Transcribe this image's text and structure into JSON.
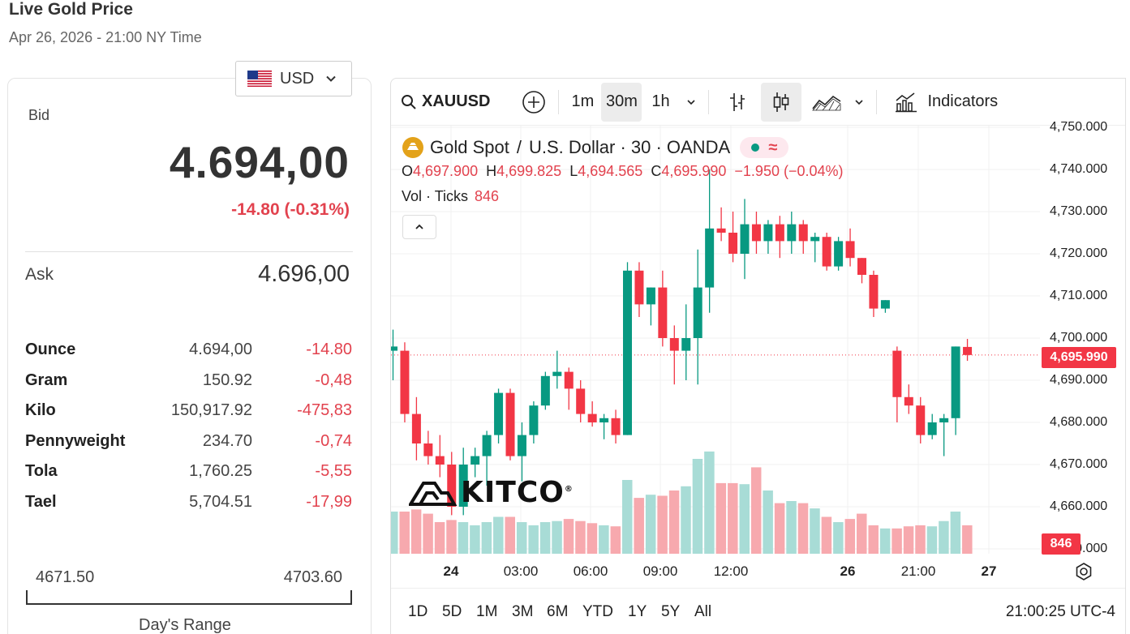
{
  "header": {
    "title": "Live Gold Price",
    "subtitle": "Apr 26, 2026 - 21:00 NY Time"
  },
  "currency": {
    "selected": "USD",
    "flag_icon": "us-flag-icon"
  },
  "quote": {
    "bid_label": "Bid",
    "bid_value": "4.694,00",
    "bid_change": "-14.80 (-0.31%)",
    "ask_label": "Ask",
    "ask_value": "4.696,00"
  },
  "units": [
    {
      "name": "Ounce",
      "price": "4.694,00",
      "change": "-14.80"
    },
    {
      "name": "Gram",
      "price": "150.92",
      "change": "-0,48"
    },
    {
      "name": "Kilo",
      "price": "150,917.92",
      "change": "-475,83"
    },
    {
      "name": "Pennyweight",
      "price": "234.70",
      "change": "-0,74"
    },
    {
      "name": "Tola",
      "price": "1,760.25",
      "change": "-5,55"
    },
    {
      "name": "Tael",
      "price": "5,704.51",
      "change": "-17,99"
    }
  ],
  "day_range": {
    "low": "4671.50",
    "high": "4703.60",
    "label": "Day's Range"
  },
  "chart_toolbar": {
    "symbol": "XAUUSD",
    "intervals": [
      "1m",
      "30m",
      "1h"
    ],
    "active_interval": "30m",
    "indicators_label": "Indicators"
  },
  "chart_legend": {
    "title": "Gold Spot",
    "title_sep": "/",
    "title_rest": "U.S. Dollar · 30 · OANDA",
    "o_label": "O",
    "o": "4,697.900",
    "h_label": "H",
    "h": "4,699.825",
    "l_label": "L",
    "l": "4,694.565",
    "c_label": "C",
    "c": "4,695.990",
    "change": "−1.950 (−0.04%)",
    "vol_label": "Vol · Ticks",
    "vol_value": "846",
    "approx_symbol": "≈"
  },
  "watermark": {
    "text": "KITCO",
    "reg": "®"
  },
  "colors": {
    "up": "#089981",
    "down": "#f23645",
    "vol_up": "#a8dcd6",
    "vol_down": "#f7a9ae",
    "gold": "#e3a21a"
  },
  "chart_data": {
    "type": "candlestick",
    "ylim": [
      4650,
      4750
    ],
    "y_ticks": [
      "4,750.000",
      "4,740.000",
      "4,730.000",
      "4,720.000",
      "4,710.000",
      "4,700.000",
      "4,690.000",
      "4,680.000",
      "4,670.000",
      "4,660.000",
      "4,650.000"
    ],
    "last_price": "4,695.990",
    "last_volume": "846",
    "x_ticks": [
      {
        "label": "24",
        "bold": true
      },
      {
        "label": "03:00",
        "bold": false
      },
      {
        "label": "06:00",
        "bold": false
      },
      {
        "label": "09:00",
        "bold": false
      },
      {
        "label": "12:00",
        "bold": false
      },
      {
        "label": "26",
        "bold": true
      },
      {
        "label": "21:00",
        "bold": false
      },
      {
        "label": "27",
        "bold": true
      }
    ],
    "candles": [
      {
        "o": 4697,
        "h": 4702,
        "l": 4690,
        "c": 4698,
        "v": 0.4
      },
      {
        "o": 4697,
        "h": 4699,
        "l": 4680,
        "c": 4682,
        "v": 0.4
      },
      {
        "o": 4682,
        "h": 4686,
        "l": 4671,
        "c": 4675,
        "v": 0.42
      },
      {
        "o": 4675,
        "h": 4678,
        "l": 4670,
        "c": 4672,
        "v": 0.38
      },
      {
        "o": 4672,
        "h": 4677,
        "l": 4667,
        "c": 4670,
        "v": 0.3
      },
      {
        "o": 4670,
        "h": 4673,
        "l": 4658,
        "c": 4660,
        "v": 0.32
      },
      {
        "o": 4660,
        "h": 4674,
        "l": 4658,
        "c": 4670,
        "v": 0.3
      },
      {
        "o": 4670,
        "h": 4674,
        "l": 4667,
        "c": 4672,
        "v": 0.27
      },
      {
        "o": 4672,
        "h": 4678,
        "l": 4665,
        "c": 4677,
        "v": 0.3
      },
      {
        "o": 4677,
        "h": 4688,
        "l": 4675,
        "c": 4687,
        "v": 0.35
      },
      {
        "o": 4687,
        "h": 4688,
        "l": 4671,
        "c": 4672,
        "v": 0.35
      },
      {
        "o": 4672,
        "h": 4680,
        "l": 4666,
        "c": 4677,
        "v": 0.3
      },
      {
        "o": 4677,
        "h": 4685,
        "l": 4675,
        "c": 4684,
        "v": 0.27
      },
      {
        "o": 4684,
        "h": 4692,
        "l": 4683,
        "c": 4691,
        "v": 0.3
      },
      {
        "o": 4691,
        "h": 4697,
        "l": 4688,
        "c": 4692,
        "v": 0.31
      },
      {
        "o": 4692,
        "h": 4693,
        "l": 4683,
        "c": 4688,
        "v": 0.33
      },
      {
        "o": 4688,
        "h": 4690,
        "l": 4680,
        "c": 4682,
        "v": 0.31
      },
      {
        "o": 4682,
        "h": 4685,
        "l": 4679,
        "c": 4680,
        "v": 0.29
      },
      {
        "o": 4680,
        "h": 4682,
        "l": 4676,
        "c": 4681,
        "v": 0.27
      },
      {
        "o": 4681,
        "h": 4683,
        "l": 4675,
        "c": 4677,
        "v": 0.26
      },
      {
        "o": 4677,
        "h": 4718,
        "l": 4677,
        "c": 4716,
        "v": 0.7
      },
      {
        "o": 4716,
        "h": 4718,
        "l": 4705,
        "c": 4708,
        "v": 0.53
      },
      {
        "o": 4708,
        "h": 4712,
        "l": 4703,
        "c": 4712,
        "v": 0.56
      },
      {
        "o": 4712,
        "h": 4716,
        "l": 4698,
        "c": 4700,
        "v": 0.55
      },
      {
        "o": 4700,
        "h": 4703,
        "l": 4689,
        "c": 4697,
        "v": 0.6
      },
      {
        "o": 4697,
        "h": 4708,
        "l": 4690,
        "c": 4700,
        "v": 0.64
      },
      {
        "o": 4700,
        "h": 4721,
        "l": 4689,
        "c": 4712,
        "v": 0.9
      },
      {
        "o": 4712,
        "h": 4740,
        "l": 4706,
        "c": 4726,
        "v": 0.97
      },
      {
        "o": 4726,
        "h": 4731,
        "l": 4723,
        "c": 4725,
        "v": 0.67
      },
      {
        "o": 4725,
        "h": 4730,
        "l": 4718,
        "c": 4720,
        "v": 0.67
      },
      {
        "o": 4720,
        "h": 4733,
        "l": 4714,
        "c": 4727,
        "v": 0.66
      },
      {
        "o": 4727,
        "h": 4730,
        "l": 4720,
        "c": 4723,
        "v": 0.82
      },
      {
        "o": 4723,
        "h": 4728,
        "l": 4720,
        "c": 4727,
        "v": 0.6
      },
      {
        "o": 4727,
        "h": 4729,
        "l": 4719,
        "c": 4723,
        "v": 0.48
      },
      {
        "o": 4723,
        "h": 4730,
        "l": 4720,
        "c": 4727,
        "v": 0.5
      },
      {
        "o": 4727,
        "h": 4728,
        "l": 4720,
        "c": 4723,
        "v": 0.48
      },
      {
        "o": 4723,
        "h": 4725,
        "l": 4718,
        "c": 4724,
        "v": 0.43
      },
      {
        "o": 4724,
        "h": 4725,
        "l": 4716,
        "c": 4717,
        "v": 0.35
      },
      {
        "o": 4717,
        "h": 4724,
        "l": 4716,
        "c": 4723,
        "v": 0.3
      },
      {
        "o": 4723,
        "h": 4726,
        "l": 4717,
        "c": 4719,
        "v": 0.33
      },
      {
        "o": 4719,
        "h": 4719,
        "l": 4713,
        "c": 4715,
        "v": 0.38
      },
      {
        "o": 4715,
        "h": 4716,
        "l": 4705,
        "c": 4707,
        "v": 0.27
      },
      {
        "o": 4707,
        "h": 4709,
        "l": 4706,
        "c": 4709,
        "v": 0.24
      },
      {
        "o": 4697,
        "h": 4698,
        "l": 4680,
        "c": 4686,
        "v": 0.24
      },
      {
        "o": 4686,
        "h": 4689,
        "l": 4682,
        "c": 4684,
        "v": 0.26
      },
      {
        "o": 4684,
        "h": 4686,
        "l": 4675,
        "c": 4677,
        "v": 0.27
      },
      {
        "o": 4677,
        "h": 4682,
        "l": 4676,
        "c": 4680,
        "v": 0.26
      },
      {
        "o": 4680,
        "h": 4682,
        "l": 4672,
        "c": 4681,
        "v": 0.31
      },
      {
        "o": 4681,
        "h": 4698,
        "l": 4677,
        "c": 4698,
        "v": 0.4
      },
      {
        "o": 4697.9,
        "h": 4699.8,
        "l": 4694.6,
        "c": 4695.99,
        "v": 0.27
      }
    ]
  },
  "bottom_bar": {
    "ranges": [
      "1D",
      "5D",
      "1M",
      "3M",
      "6M",
      "YTD",
      "1Y",
      "5Y",
      "All"
    ],
    "clock": "21:00:25 UTC-4"
  }
}
